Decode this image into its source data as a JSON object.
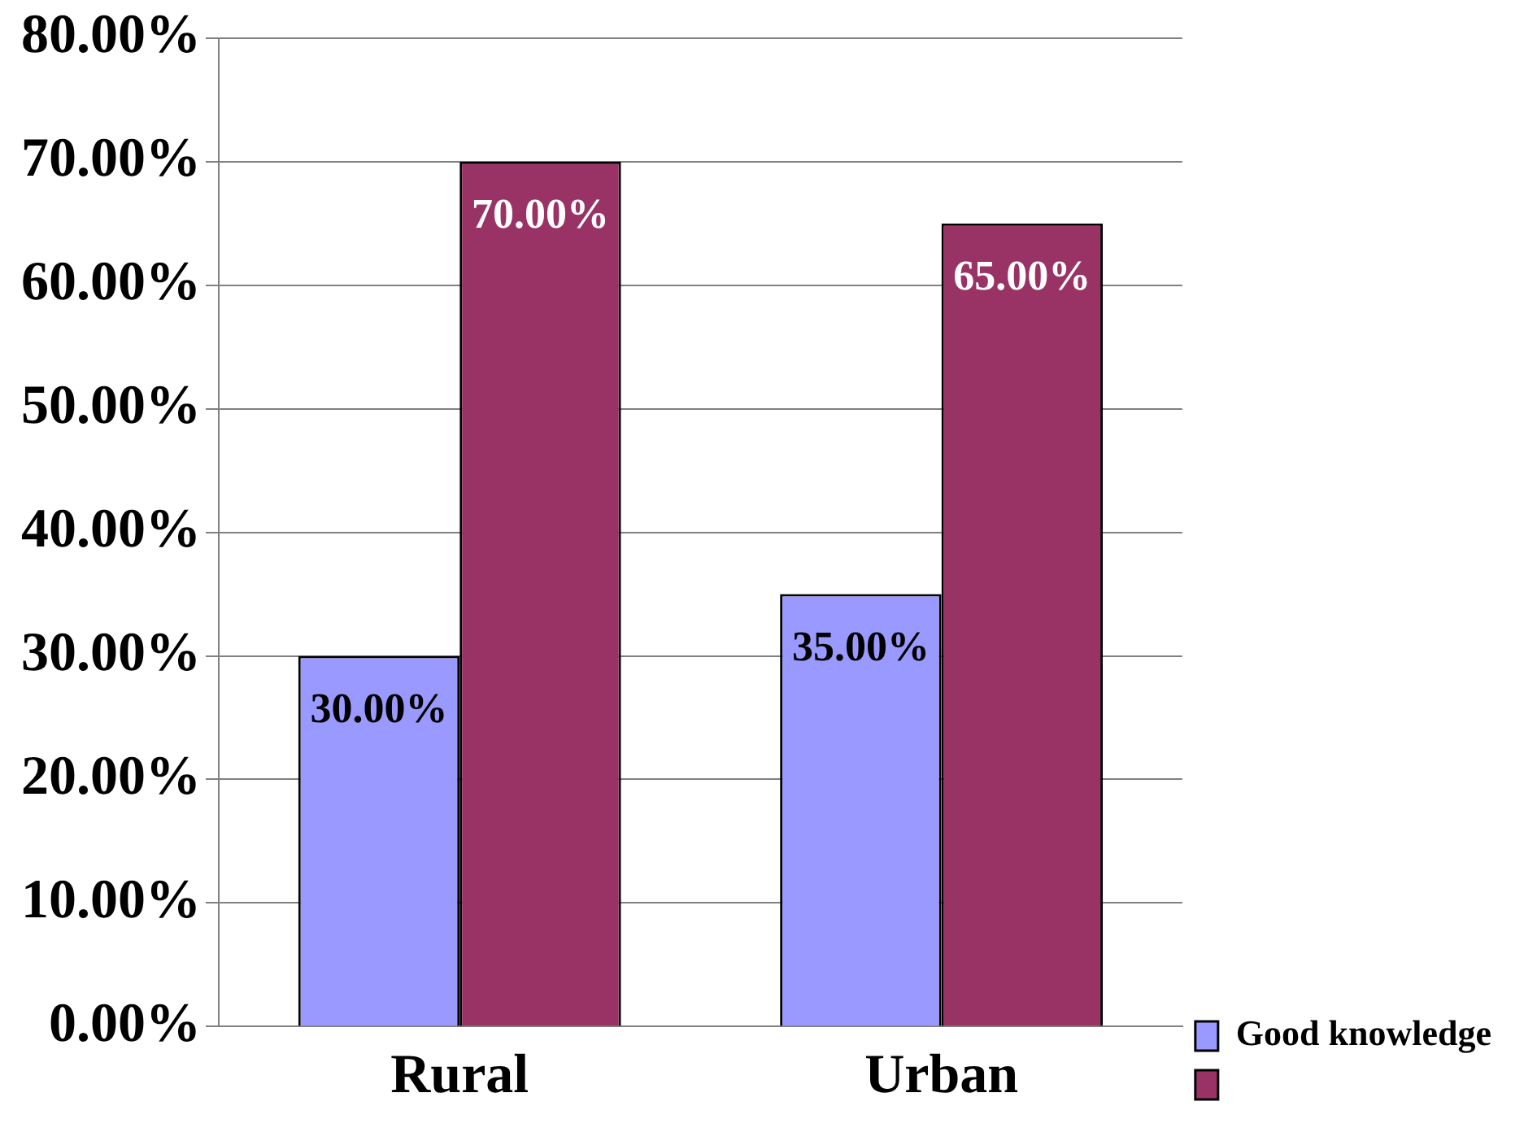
{
  "chart_data": {
    "type": "bar",
    "categories": [
      "Rural",
      "Urban"
    ],
    "series": [
      {
        "name": "Good knowledge",
        "color": "#9999ff",
        "values": [
          30,
          35
        ],
        "value_labels": [
          "30.00%",
          "35.00%"
        ]
      },
      {
        "color": "#993366",
        "values": [
          70,
          65
        ],
        "value_labels": [
          "70.00%",
          "65.00%"
        ]
      }
    ],
    "ylim": [
      0,
      80
    ],
    "yticks": [
      {
        "value": 0,
        "label": "0.00%"
      },
      {
        "value": 10,
        "label": "10.00%"
      },
      {
        "value": 20,
        "label": "20.00%"
      },
      {
        "value": 30,
        "label": "30.00%"
      },
      {
        "value": 40,
        "label": "40.00%"
      },
      {
        "value": 50,
        "label": "50.00%"
      },
      {
        "value": 60,
        "label": "60.00%"
      },
      {
        "value": 70,
        "label": "70.00%"
      },
      {
        "value": 80,
        "label": "80.00%"
      }
    ],
    "grid": "y",
    "legend": "bottom right"
  }
}
